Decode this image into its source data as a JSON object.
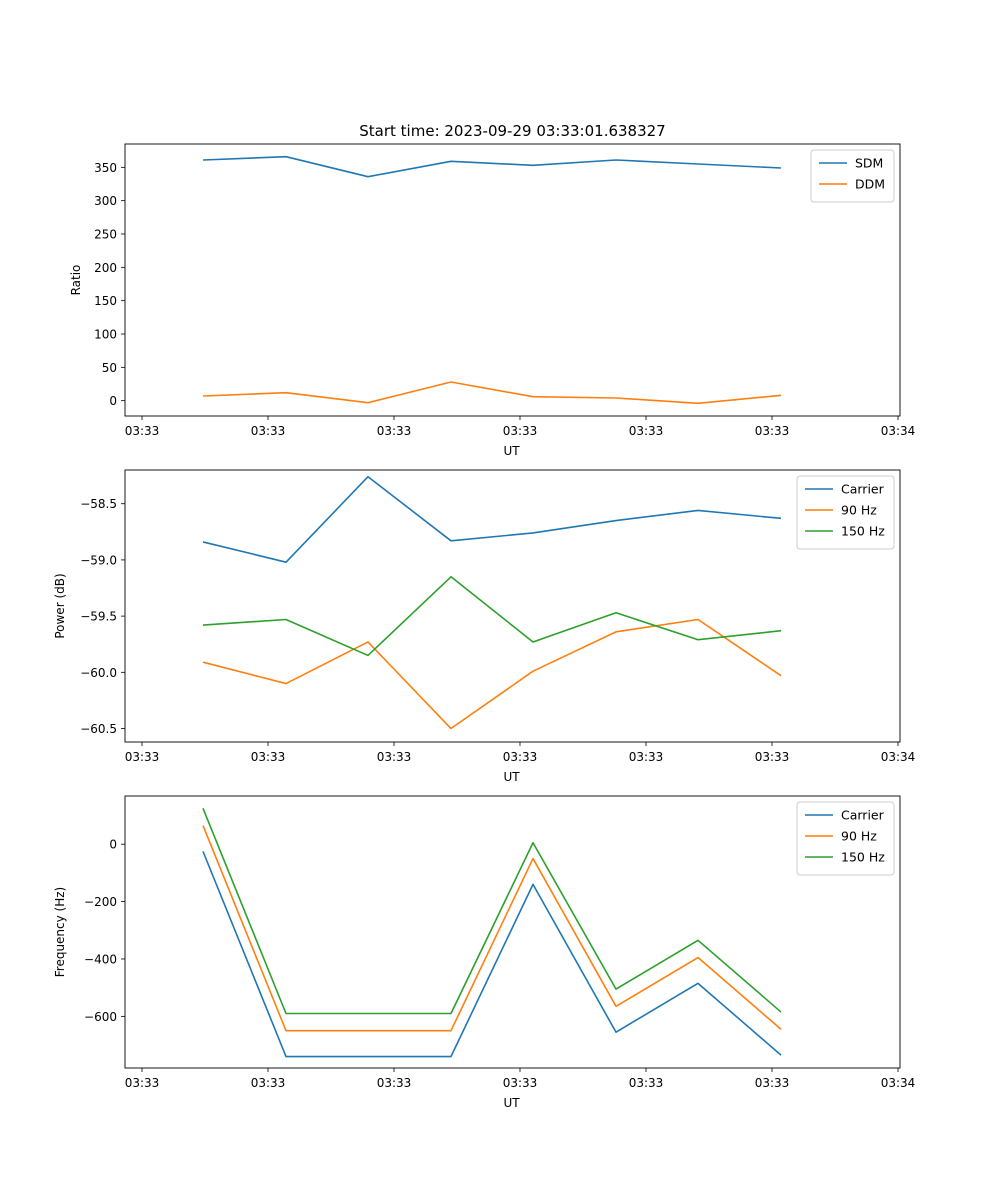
{
  "chart_data": [
    {
      "type": "line",
      "title": "Start time: 2023-09-29 03:33:01.638327",
      "xlabel": "UT",
      "ylabel": "Ratio",
      "x_tick_labels": [
        "03:33",
        "03:33",
        "03:33",
        "03:33",
        "03:33",
        "03:33",
        "03:34"
      ],
      "x": [
        1,
        2,
        3,
        4,
        5,
        6,
        7,
        8
      ],
      "xlim": [
        0.2,
        9.2
      ],
      "ylim": [
        -23,
        385
      ],
      "y_ticks": [
        0,
        50,
        100,
        150,
        200,
        250,
        300,
        350
      ],
      "legend_position": "top-right",
      "series": [
        {
          "name": "SDM",
          "color": "#1f77b4",
          "values": [
            361,
            366,
            336,
            359,
            353,
            361,
            355,
            349
          ]
        },
        {
          "name": "DDM",
          "color": "#ff7f0e",
          "values": [
            7,
            12,
            -3,
            28,
            6,
            4,
            -4,
            8
          ]
        }
      ]
    },
    {
      "type": "line",
      "title": "",
      "xlabel": "UT",
      "ylabel": "Power (dB)",
      "x_tick_labels": [
        "03:33",
        "03:33",
        "03:33",
        "03:33",
        "03:33",
        "03:33",
        "03:34"
      ],
      "x": [
        1,
        2,
        3,
        4,
        5,
        6,
        7,
        8
      ],
      "xlim": [
        0.2,
        9.2
      ],
      "ylim": [
        -60.62,
        -58.2
      ],
      "y_ticks": [
        -60.5,
        -60.0,
        -59.5,
        -59.0,
        -58.5
      ],
      "y_tick_labels": [
        "−60.5",
        "−60.0",
        "−59.5",
        "−59.0",
        "−58.5"
      ],
      "legend_position": "top-right",
      "series": [
        {
          "name": "Carrier",
          "color": "#1f77b4",
          "values": [
            -58.84,
            -59.02,
            -58.26,
            -58.83,
            -58.76,
            -58.65,
            -58.56,
            -58.63
          ]
        },
        {
          "name": "90 Hz",
          "color": "#ff7f0e",
          "values": [
            -59.91,
            -60.1,
            -59.73,
            -60.5,
            -59.99,
            -59.64,
            -59.53,
            -60.03
          ]
        },
        {
          "name": "150 Hz",
          "color": "#2ca02c",
          "values": [
            -59.58,
            -59.53,
            -59.85,
            -59.15,
            -59.73,
            -59.47,
            -59.71,
            -59.63
          ]
        }
      ]
    },
    {
      "type": "line",
      "title": "",
      "xlabel": "UT",
      "ylabel": "Frequency (Hz)",
      "x_tick_labels": [
        "03:33",
        "03:33",
        "03:33",
        "03:33",
        "03:33",
        "03:33",
        "03:34"
      ],
      "x": [
        1,
        2,
        3,
        4,
        5,
        6,
        7,
        8
      ],
      "xlim": [
        0.2,
        9.2
      ],
      "ylim": [
        -780,
        168
      ],
      "y_ticks": [
        -600,
        -400,
        -200,
        0
      ],
      "y_tick_labels": [
        "−600",
        "−400",
        "−200",
        "0"
      ],
      "legend_position": "top-right",
      "series": [
        {
          "name": "Carrier",
          "color": "#1f77b4",
          "values": [
            -25,
            -740,
            -740,
            -740,
            -140,
            -655,
            -485,
            -735
          ]
        },
        {
          "name": "90 Hz",
          "color": "#ff7f0e",
          "values": [
            65,
            -650,
            -650,
            -650,
            -50,
            -565,
            -395,
            -645
          ]
        },
        {
          "name": "150 Hz",
          "color": "#2ca02c",
          "values": [
            125,
            -590,
            -590,
            -590,
            5,
            -505,
            -335,
            -585
          ]
        }
      ]
    }
  ]
}
